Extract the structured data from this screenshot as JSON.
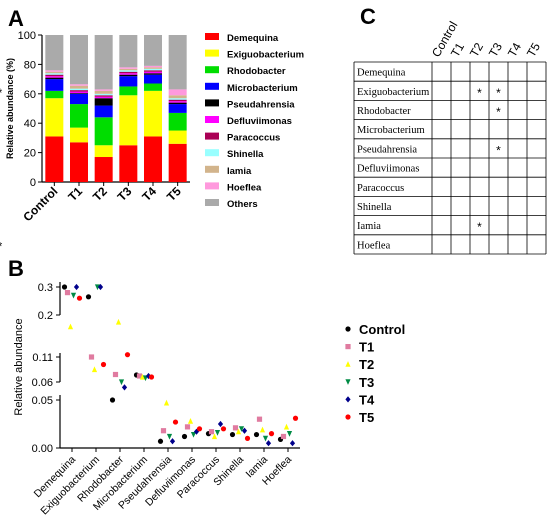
{
  "panels": {
    "a": "A",
    "b": "B",
    "c": "C"
  },
  "colors": {
    "Demequina": "#ff0000",
    "Exiguobacterium": "#ffff00",
    "Rhodobacter": "#00dd00",
    "Microbacterium": "#0000ff",
    "Pseudahrensia": "#000000",
    "Defluviimonas": "#ff00ff",
    "Paracoccus": "#aa0055",
    "Shinella": "#99ffff",
    "Iamia": "#d2b48c",
    "Hoeflea": "#ff99dd",
    "Others": "#aaaaaa"
  },
  "chart_data": [
    {
      "type": "bar",
      "stacked": true,
      "ylabel": "Relative abundance (%)",
      "ylim": [
        0,
        100
      ],
      "yticks": [
        0,
        20,
        40,
        60,
        80,
        100
      ],
      "categories": [
        "Control",
        "T1",
        "T2",
        "T3",
        "T4",
        "T5"
      ],
      "legend_position": "right",
      "series": [
        {
          "name": "Demequina",
          "values": [
            31,
            27,
            17,
            25,
            31,
            26
          ]
        },
        {
          "name": "Exiguobacterium",
          "values": [
            26,
            10,
            8,
            34,
            31,
            9
          ]
        },
        {
          "name": "Rhodobacter",
          "values": [
            5,
            16,
            19,
            6,
            5,
            12
          ]
        },
        {
          "name": "Microbacterium",
          "values": [
            8,
            7,
            8,
            7,
            6,
            6
          ]
        },
        {
          "name": "Pseudahrensia",
          "values": [
            1,
            0.5,
            5,
            1,
            1,
            1
          ]
        },
        {
          "name": "Defluviimonas",
          "values": [
            1,
            1,
            1,
            1,
            1,
            1
          ]
        },
        {
          "name": "Paracoccus",
          "values": [
            1,
            1,
            1,
            1,
            1,
            1
          ]
        },
        {
          "name": "Shinella",
          "values": [
            1,
            1,
            1,
            1,
            1,
            1
          ]
        },
        {
          "name": "Iamia",
          "values": [
            1,
            2,
            2,
            1,
            1,
            2
          ]
        },
        {
          "name": "Hoeflea",
          "values": [
            1,
            1,
            1,
            1,
            1,
            4
          ]
        },
        {
          "name": "Others",
          "values": [
            24,
            33.5,
            37,
            22,
            21,
            37
          ]
        }
      ]
    },
    {
      "type": "scatter",
      "ylabel": "Relative abundance",
      "categories": [
        "Demequina",
        "Exiguobacterium",
        "Rhodobacter",
        "Microbacterium",
        "Pseudahrensia",
        "Defluviimonas",
        "Paracoccus",
        "Shinella",
        "Iamia",
        "Hoeflea"
      ],
      "y_segments": [
        {
          "range": [
            0,
            0.05
          ],
          "ticks": [
            "0.00",
            "0.05"
          ]
        },
        {
          "range": [
            0.06,
            0.11
          ],
          "ticks": [
            "0.06",
            "0.11"
          ]
        },
        {
          "range": [
            0.2,
            0.3
          ],
          "ticks": [
            "0.2",
            "0.3"
          ]
        }
      ],
      "legend_position": "right",
      "series": [
        {
          "name": "Control",
          "color": "#000000",
          "marker": "circle",
          "values": [
            0.31,
            0.265,
            0.05,
            0.074,
            0.007,
            0.012,
            0.015,
            0.014,
            0.014,
            0.009
          ]
        },
        {
          "name": "T1",
          "color": "#e07ba0",
          "marker": "square",
          "values": [
            0.28,
            0.11,
            0.075,
            0.072,
            0.018,
            0.022,
            0.017,
            0.021,
            0.03,
            0.012
          ]
        },
        {
          "name": "T2",
          "color": "#ffff00",
          "marker": "triangle-up",
          "values": [
            0.175,
            0.085,
            0.185,
            0.07,
            0.047,
            0.028,
            0.012,
            0.017,
            0.019,
            0.022
          ]
        },
        {
          "name": "T3",
          "color": "#008b45",
          "marker": "triangle-down",
          "values": [
            0.27,
            0.34,
            0.06,
            0.068,
            0.012,
            0.014,
            0.016,
            0.02,
            0.01,
            0.015
          ]
        },
        {
          "name": "T4",
          "color": "#00008b",
          "marker": "diamond",
          "values": [
            0.31,
            0.3,
            0.057,
            0.072,
            0.007,
            0.017,
            0.025,
            0.018,
            0.005,
            0.005
          ]
        },
        {
          "name": "T5",
          "color": "#ff0000",
          "marker": "circle",
          "values": [
            0.26,
            0.095,
            0.115,
            0.07,
            0.027,
            0.02,
            0.02,
            0.01,
            0.015,
            0.031
          ]
        }
      ]
    },
    {
      "type": "table",
      "columns": [
        "Control",
        "T1",
        "T2",
        "T3",
        "T4",
        "T5"
      ],
      "rows": [
        {
          "name": "Demequina",
          "cells": [
            "",
            "",
            "",
            "",
            "",
            ""
          ]
        },
        {
          "name": "Exiguobacterium",
          "cells": [
            "",
            "*",
            "*",
            "",
            "",
            "*"
          ]
        },
        {
          "name": "Rhodobacter",
          "cells": [
            "",
            "",
            "*",
            "",
            "",
            ""
          ]
        },
        {
          "name": "Microbacterium",
          "cells": [
            "",
            "",
            "",
            "",
            "",
            ""
          ]
        },
        {
          "name": "Pseudahrensia",
          "cells": [
            "",
            "",
            "*",
            "",
            "",
            ""
          ]
        },
        {
          "name": "Defluviimonas",
          "cells": [
            "",
            "",
            "",
            "",
            "",
            ""
          ]
        },
        {
          "name": "Paracoccus",
          "cells": [
            "",
            "",
            "",
            "",
            "",
            ""
          ]
        },
        {
          "name": "Shinella",
          "cells": [
            "",
            "",
            "",
            "",
            "",
            ""
          ]
        },
        {
          "name": "Iamia",
          "cells": [
            "",
            "*",
            "",
            "",
            "",
            ""
          ]
        },
        {
          "name": "Hoeflea",
          "cells": [
            "",
            "",
            "",
            "",
            "",
            "*"
          ]
        }
      ]
    }
  ]
}
